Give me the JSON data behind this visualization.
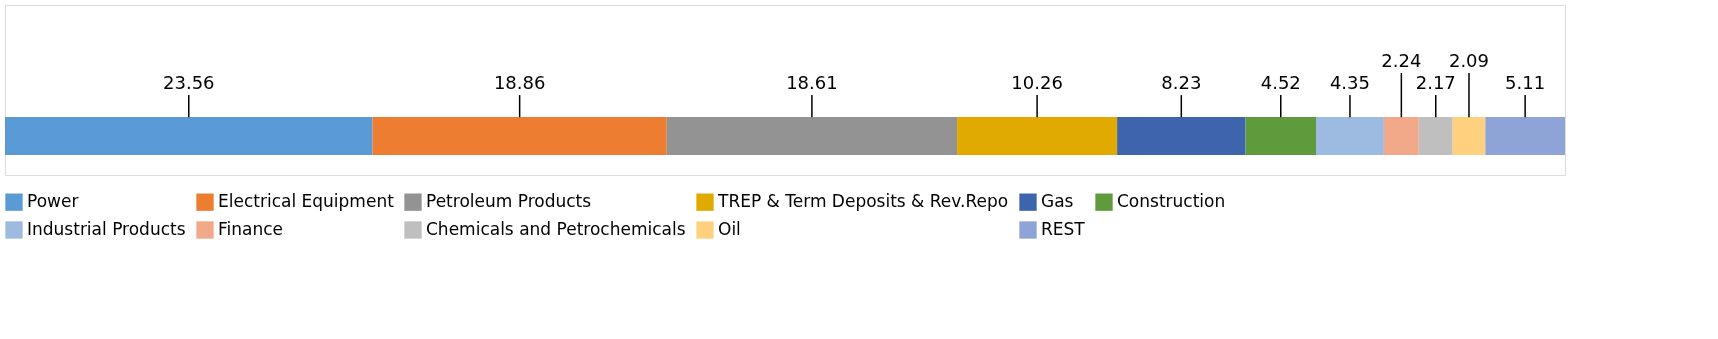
{
  "chart_data": {
    "type": "bar",
    "stacked": true,
    "orientation": "horizontal",
    "categories": [
      null
    ],
    "data_labels": true,
    "legend": "bottom",
    "series": [
      {
        "name": "Power",
        "color": "#5b9bd5",
        "values": [
          23.56
        ]
      },
      {
        "name": "Electrical Equipment",
        "color": "#ed7d31",
        "values": [
          18.86
        ]
      },
      {
        "name": "Petroleum Products",
        "color": "#939393",
        "values": [
          18.61
        ]
      },
      {
        "name": "TREP & Term Deposits & Rev.Repo",
        "color": "#e0aa00",
        "values": [
          10.26
        ]
      },
      {
        "name": "Gas",
        "color": "#3d64ad",
        "values": [
          8.23
        ]
      },
      {
        "name": "Construction",
        "color": "#5f9a3c",
        "values": [
          4.52
        ]
      },
      {
        "name": "Industrial Products",
        "color": "#9dbbe0",
        "values": [
          4.35
        ]
      },
      {
        "name": "Finance",
        "color": "#f2a98a",
        "values": [
          2.24
        ]
      },
      {
        "name": "Chemicals and Petrochemicals",
        "color": "#bfbfbf",
        "values": [
          2.17
        ]
      },
      {
        "name": "Oil",
        "color": "#ffd17f",
        "values": [
          2.09
        ]
      },
      {
        "name": "REST",
        "color": "#8fa4d6",
        "values": [
          5.11
        ]
      }
    ]
  }
}
